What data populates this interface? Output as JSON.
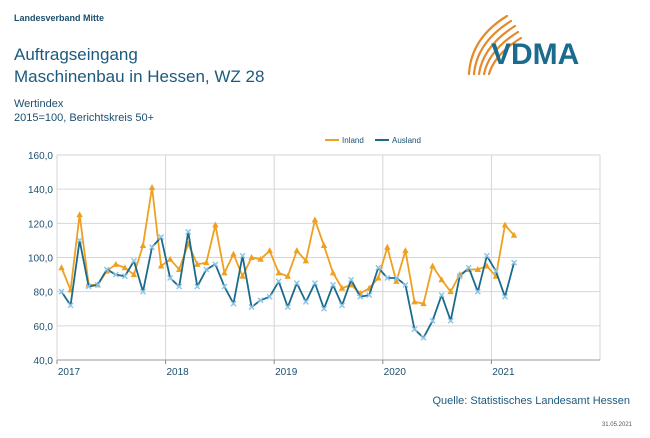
{
  "header": {
    "organization": "Landesverband Mitte",
    "title_line1": "Auftragseingang",
    "title_line2": "Maschinenbau in Hessen, WZ 28",
    "unit_line1": "Wertindex",
    "unit_line2": "2015=100, Berichtskreis 50+"
  },
  "logo": {
    "text": "VDMA",
    "icon": "swoosh-arcs",
    "text_color": "#1a6b8c",
    "arc_color": "#e58a2b"
  },
  "footer": {
    "source": "Quelle: Statistisches Landesamt Hessen",
    "date": "31.05.2021"
  },
  "chart_data": {
    "type": "line",
    "x_start": "2017-01",
    "x_ticks": [
      "2017",
      "2018",
      "2019",
      "2020",
      "2021"
    ],
    "ylim": [
      40,
      160
    ],
    "y_ticks": [
      "40,0",
      "60,0",
      "80,0",
      "100,0",
      "120,0",
      "140,0",
      "160,0"
    ],
    "grid": true,
    "legend_position": "top-right",
    "series": [
      {
        "name": "Inland",
        "color": "#f0a020",
        "marker": "triangle",
        "values": [
          94,
          81,
          125,
          84,
          84,
          92,
          96,
          94,
          90,
          107,
          141,
          95,
          99,
          93,
          108,
          96,
          97,
          119,
          91,
          102,
          89,
          100,
          99,
          104,
          91,
          89,
          104,
          98,
          122,
          107,
          91,
          82,
          84,
          79,
          82,
          88,
          106,
          86,
          104,
          74,
          73,
          95,
          87,
          80,
          90,
          93,
          93,
          95,
          89,
          119,
          113
        ]
      },
      {
        "name": "Ausland",
        "color": "#1a6b8c",
        "marker": "x",
        "values": [
          80,
          72,
          110,
          83,
          84,
          93,
          90,
          89,
          98,
          80,
          106,
          112,
          88,
          83,
          115,
          83,
          93,
          96,
          83,
          73,
          101,
          71,
          75,
          77,
          86,
          71,
          85,
          74,
          85,
          70,
          84,
          72,
          87,
          77,
          78,
          94,
          88,
          88,
          84,
          58,
          53,
          63,
          78,
          63,
          89,
          94,
          80,
          101,
          92,
          77,
          97
        ]
      }
    ]
  }
}
